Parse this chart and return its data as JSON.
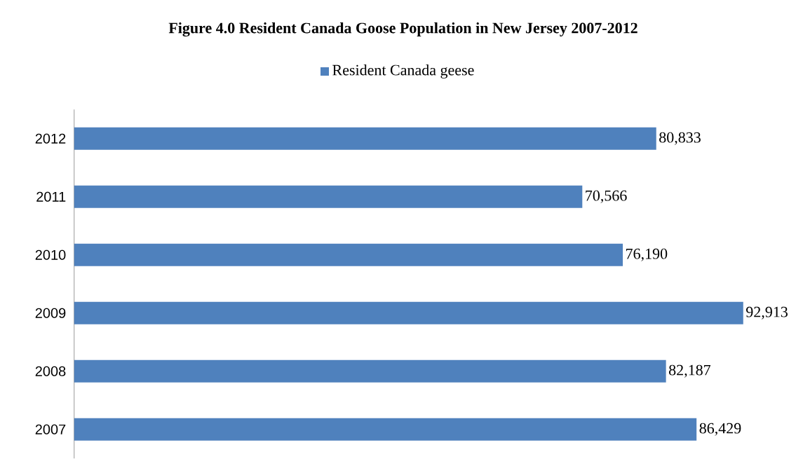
{
  "chart_data": {
    "type": "bar",
    "orientation": "horizontal",
    "title": "Figure 4.0 Resident Canada Goose Population in New Jersey 2007-2012",
    "categories": [
      "2012",
      "2011",
      "2010",
      "2009",
      "2008",
      "2007"
    ],
    "series": [
      {
        "name": "Resident Canada geese",
        "color": "#4f81bd",
        "values": [
          80833,
          70566,
          76190,
          92913,
          82187,
          86429
        ],
        "value_labels": [
          "80,833",
          "70,566",
          "76,190",
          "92,913",
          "82,187",
          "86,429"
        ]
      }
    ],
    "legend": "top"
  }
}
